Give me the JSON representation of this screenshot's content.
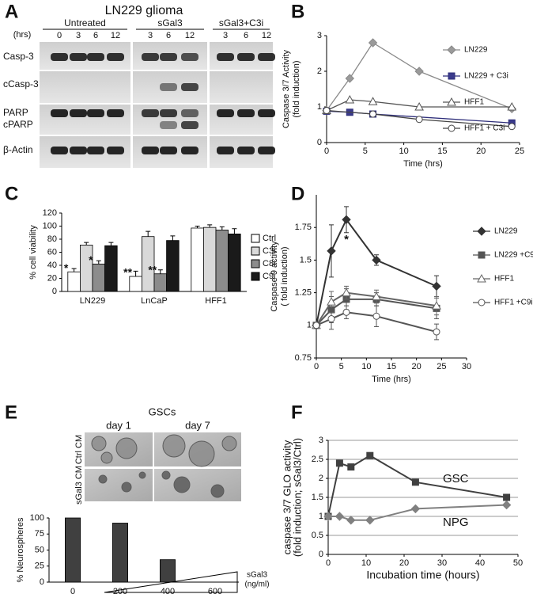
{
  "panel_letters": [
    "A",
    "B",
    "C",
    "D",
    "E",
    "F"
  ],
  "blot": {
    "title": "LN229 glioma",
    "hrs_label": "(hrs)",
    "groups": [
      {
        "name": "Untreated",
        "times": [
          "0",
          "3",
          "6",
          "12"
        ]
      },
      {
        "name": "sGal3",
        "times": [
          "3",
          "6",
          "12"
        ]
      },
      {
        "name": "sGal3+C3i",
        "times": [
          "3",
          "6",
          "12"
        ]
      }
    ],
    "rows": [
      "Casp-3",
      "cCasp-3",
      "PARP",
      "cPARP",
      "β-Actin"
    ]
  },
  "micrographs": {
    "title": "GSCs",
    "columns": [
      "day 1",
      "day 7"
    ],
    "rows": [
      "Ctrl CM",
      "sGal3 CM"
    ]
  },
  "chart_data": [
    {
      "type": "line",
      "ylabel": [
        "Caspase 3/7  Activity",
        "(fold induction)"
      ],
      "xlabel": "Time (hrs)",
      "xlim": [
        0,
        25
      ],
      "xticks": [
        0,
        5,
        10,
        15,
        20,
        25
      ],
      "ylim": [
        0,
        3
      ],
      "yticks": [
        0,
        1,
        2,
        3
      ],
      "series": [
        {
          "name": "LN229",
          "color": "#8a8a8a",
          "fill": "#9a9a9a",
          "marker": "diamond",
          "x": [
            0,
            3,
            6,
            12,
            24
          ],
          "values": [
            0.9,
            1.8,
            2.8,
            2.0,
            0.95
          ]
        },
        {
          "name": "LN229 + C3i",
          "color": "#2e2e7a",
          "fill": "#3a3a8c",
          "marker": "square",
          "x": [
            0,
            3,
            6,
            24
          ],
          "values": [
            0.88,
            0.85,
            0.8,
            0.55
          ]
        },
        {
          "name": "HFF1",
          "color": "#555555",
          "fill": "#ffffff",
          "marker": "triangle",
          "x": [
            0,
            3,
            6,
            12,
            24
          ],
          "values": [
            0.9,
            1.2,
            1.15,
            1.0,
            1.0
          ]
        },
        {
          "name": "HFF1 + C3i",
          "color": "#444444",
          "fill": "#ffffff",
          "marker": "circle",
          "x": [
            0,
            6,
            12,
            24
          ],
          "values": [
            0.9,
            0.8,
            0.65,
            0.45
          ]
        }
      ]
    },
    {
      "type": "bar",
      "ylabel": [
        "% cell viability"
      ],
      "categories": [
        "LN229",
        "LnCaP",
        "HFF1"
      ],
      "ylim": [
        0,
        120
      ],
      "yticks": [
        0,
        20,
        40,
        60,
        80,
        100,
        120
      ],
      "series": [
        {
          "name": "Ctrl",
          "color": "#ffffff",
          "values": [
            30,
            23,
            97
          ],
          "errors": [
            5,
            8,
            3
          ],
          "markers": [
            "*",
            "**",
            null
          ]
        },
        {
          "name": "C3i",
          "color": "#d9d9d9",
          "values": [
            71,
            84,
            98
          ],
          "errors": [
            4,
            8,
            4
          ]
        },
        {
          "name": "C8i",
          "color": "#8c8c8c",
          "values": [
            42,
            27,
            94
          ],
          "errors": [
            5,
            6,
            5
          ],
          "markers": [
            "*",
            "**",
            null
          ]
        },
        {
          "name": "C9i",
          "color": "#1a1a1a",
          "values": [
            70,
            78,
            88
          ],
          "errors": [
            5,
            7,
            8
          ]
        }
      ]
    },
    {
      "type": "line",
      "ylabel": [
        "Caspase 9 activity",
        "( fold induction)"
      ],
      "xlabel": "Time (hrs)",
      "x": [
        0,
        3,
        6,
        12,
        24
      ],
      "xlim": [
        0,
        30
      ],
      "xticks": [
        0,
        5,
        10,
        15,
        20,
        25,
        30
      ],
      "ylim": [
        0.75,
        2.0
      ],
      "yticks": [
        0.75,
        1,
        1.25,
        1.5,
        1.75
      ],
      "annotation": "*",
      "series": [
        {
          "name": "LN229",
          "color": "#333333",
          "fill": "#333333",
          "marker": "diamond",
          "values": [
            1,
            1.57,
            1.81,
            1.5,
            1.3
          ],
          "errors": [
            0.02,
            0.2,
            0.1,
            0.04,
            0.08
          ]
        },
        {
          "name": "LN229 +C9i",
          "color": "#555555",
          "fill": "#555555",
          "marker": "square",
          "values": [
            1,
            1.12,
            1.2,
            1.2,
            1.13
          ],
          "errors": [
            0.02,
            0.1,
            0.08,
            0.05,
            0.08
          ]
        },
        {
          "name": "HFF1",
          "color": "#666666",
          "fill": "#ffffff",
          "marker": "triangle",
          "values": [
            1,
            1.18,
            1.25,
            1.22,
            1.15
          ],
          "errors": [
            0.02,
            0.08,
            0.05,
            0.05,
            0.07
          ]
        },
        {
          "name": "HFF1 +C9i",
          "color": "#555555",
          "fill": "#ffffff",
          "marker": "circle",
          "values": [
            1,
            1.05,
            1.1,
            1.07,
            0.95
          ],
          "errors": [
            0.02,
            0.08,
            0.05,
            0.08,
            0.06
          ]
        }
      ]
    },
    {
      "type": "bar",
      "ylabel": [
        "% Neurospheres"
      ],
      "xlabel": [
        "sGal3",
        "(ng/ml)"
      ],
      "categories": [
        "0",
        "200",
        "400",
        "600"
      ],
      "ylim": [
        0,
        100
      ],
      "yticks": [
        0,
        25,
        50,
        75,
        100
      ],
      "series": [
        {
          "color": "#404040",
          "values": [
            100,
            92,
            35,
            0
          ]
        }
      ]
    },
    {
      "type": "line",
      "ylabel": [
        "caspase 3/7 GLO activity",
        "(fold induction; sGal3/Ctrl)"
      ],
      "xlabel": "Incubation time (hours)",
      "x": [
        0,
        3,
        6,
        11,
        23,
        47
      ],
      "xlim": [
        0,
        50
      ],
      "xticks": [
        0,
        10,
        20,
        30,
        40,
        50
      ],
      "ylim": [
        0,
        3
      ],
      "yticks": [
        0,
        0.5,
        1,
        1.5,
        2,
        2.5,
        3
      ],
      "grid": true,
      "series": [
        {
          "name": "GSC",
          "color": "#404040",
          "fill": "#404040",
          "marker": "square",
          "values": [
            1,
            2.4,
            2.3,
            2.6,
            1.9,
            1.5
          ]
        },
        {
          "name": "NPG",
          "color": "#808080",
          "fill": "#808080",
          "marker": "diamond",
          "values": [
            1,
            1,
            0.9,
            0.9,
            1.2,
            1.3
          ]
        }
      ]
    }
  ]
}
